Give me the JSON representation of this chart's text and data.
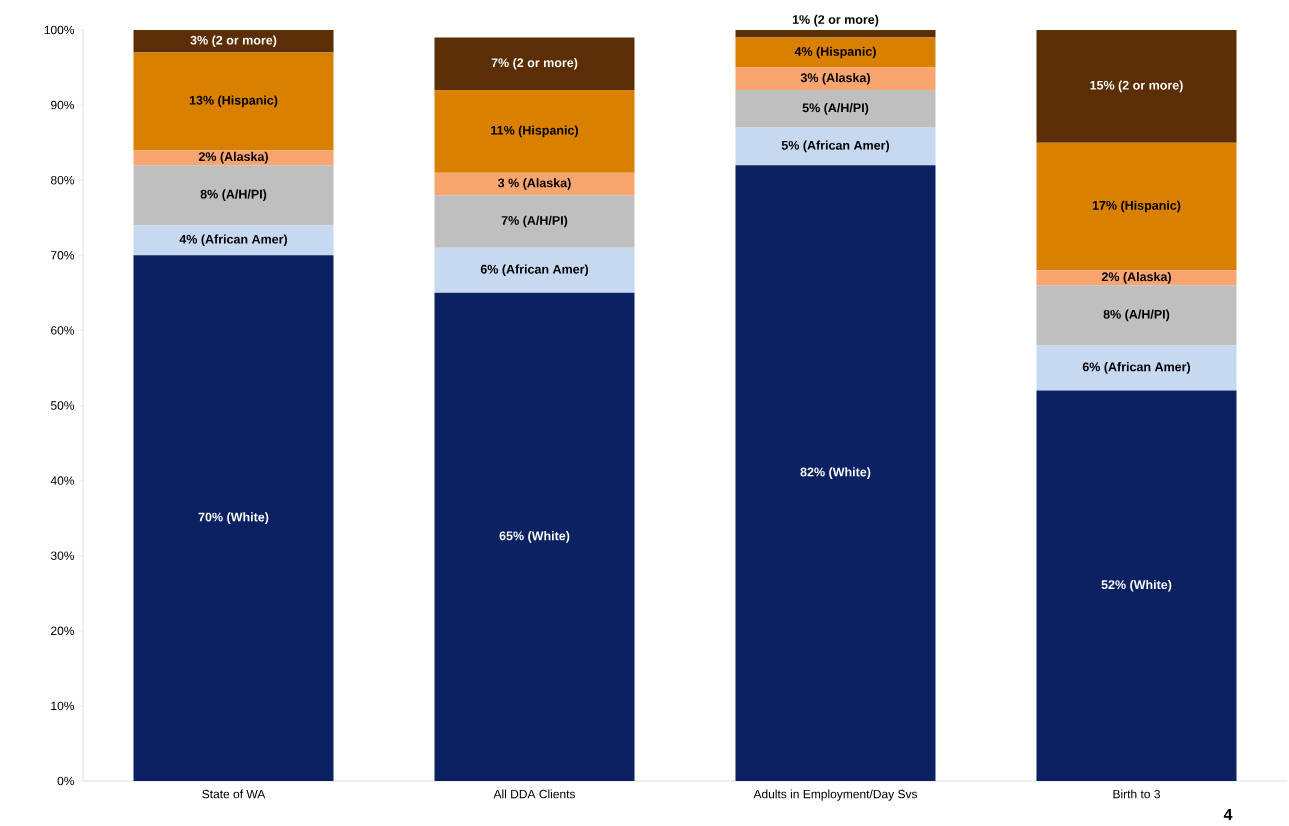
{
  "chart_data": {
    "type": "bar",
    "stacked": true,
    "categories": [
      "State of WA",
      "All DDA Clients",
      "Adults in Employment/Day Svs",
      "Birth to 3"
    ],
    "series": [
      {
        "color": "#0c2161",
        "values": [
          70,
          65,
          82,
          52
        ],
        "value_labels": [
          "70% (White)",
          "65% (White)",
          "82% (White)",
          "52% (White)"
        ]
      },
      {
        "color": "#c6d9f1",
        "values": [
          4,
          6,
          5,
          6
        ],
        "value_labels": [
          "4% (African  Amer)",
          "6% (African  Amer)",
          "5% (African  Amer)",
          "6% (African  Amer)"
        ]
      },
      {
        "color": "#bfbfbf",
        "values": [
          8,
          7,
          5,
          8
        ],
        "value_labels": [
          "8% (A/H/PI)",
          "7% (A/H/PI)",
          "5% (A/H/PI)",
          "8% (A/H/PI)"
        ]
      },
      {
        "color": "#f9a56f",
        "values": [
          2,
          3,
          3,
          2
        ],
        "value_labels": [
          "2% (Alaska)",
          "3 % (Alaska)",
          "3% (Alaska)",
          "2% (Alaska)"
        ]
      },
      {
        "color": "#d98000",
        "values": [
          13,
          11,
          4,
          17
        ],
        "value_labels": [
          "13% (Hispanic)",
          "11% (Hispanic)",
          "4% (Hispanic)",
          "17% (Hispanic)"
        ]
      },
      {
        "color": "#5c2e05",
        "values": [
          3,
          7,
          1,
          15
        ],
        "value_labels": [
          "3% (2 or more)",
          "7% (2 or more)",
          "1% (2 or more)",
          "15% (2 or more)"
        ]
      }
    ],
    "ylim": [
      0,
      100
    ],
    "yticks": [
      {
        "value": 0,
        "label": "0%"
      },
      {
        "value": 10,
        "label": "10%"
      },
      {
        "value": 20,
        "label": "20%"
      },
      {
        "value": 30,
        "label": "30%"
      },
      {
        "value": 40,
        "label": "40%"
      },
      {
        "value": 50,
        "label": "50%"
      },
      {
        "value": 60,
        "label": "60%"
      },
      {
        "value": 70,
        "label": "70%"
      },
      {
        "value": 80,
        "label": "80%"
      },
      {
        "value": 90,
        "label": "90%"
      },
      {
        "value": 100,
        "label": "100%"
      }
    ],
    "annotations": [
      "4"
    ]
  }
}
